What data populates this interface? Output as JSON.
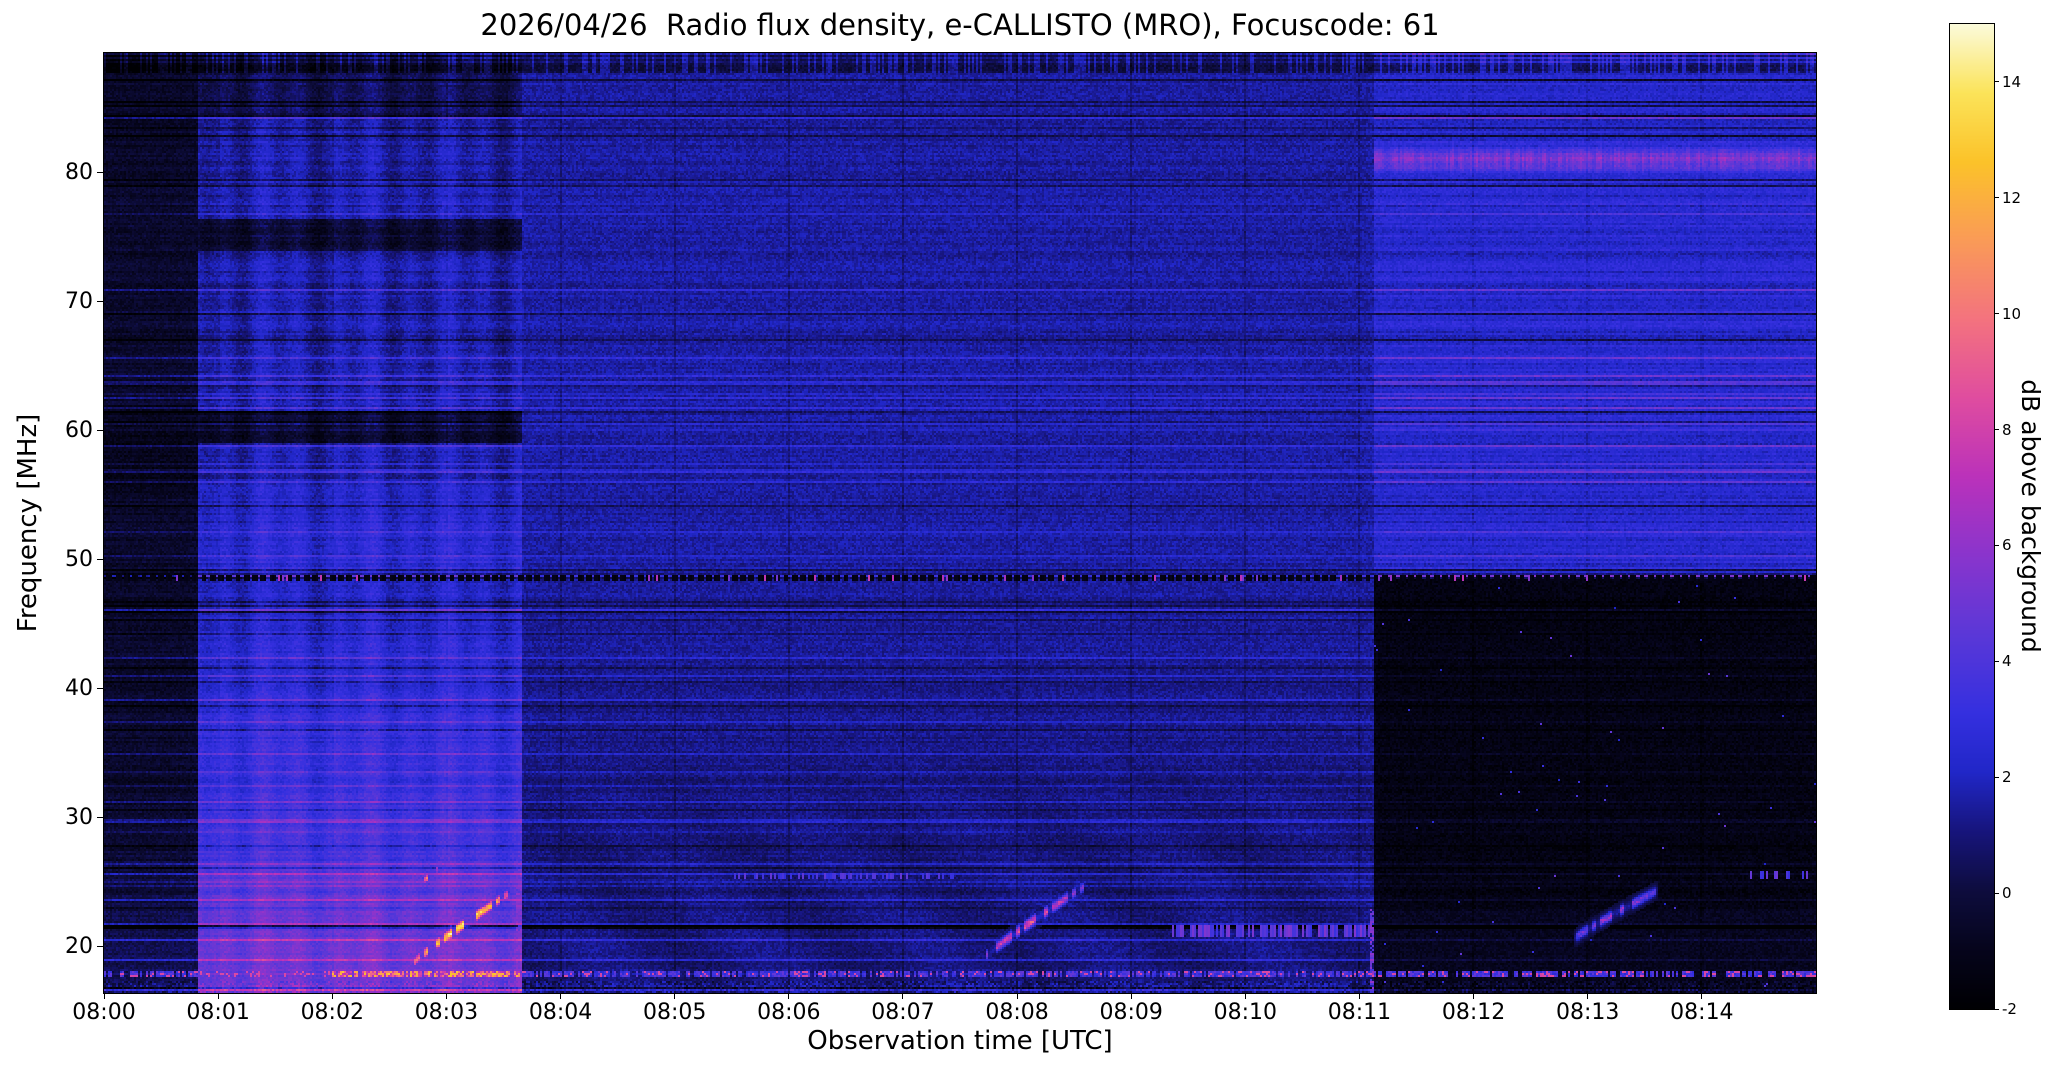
{
  "chart_data": {
    "type": "heatmap",
    "title": "2026/04/26  Radio flux density, e-CALLISTO (MRO), Focuscode: 61",
    "xlabel": "Observation time [UTC]",
    "ylabel": "Frequency [MHz]",
    "x_tick_labels": [
      "08:00",
      "08:01",
      "08:02",
      "08:03",
      "08:04",
      "08:05",
      "08:06",
      "08:07",
      "08:08",
      "08:09",
      "08:10",
      "08:11",
      "08:12",
      "08:13",
      "08:14"
    ],
    "x_range_minutes": [
      0,
      15
    ],
    "y_ticks": [
      20,
      30,
      40,
      50,
      60,
      70,
      80
    ],
    "y_range_mhz": [
      16.4,
      89.3
    ],
    "grid": false,
    "colorbar": {
      "label": "dB above background",
      "ticks": [
        -2,
        0,
        2,
        4,
        6,
        8,
        10,
        12,
        14
      ],
      "vmin": -2,
      "vmax": 15,
      "colormap_stops": [
        {
          "p": 0.0,
          "color": "#000003"
        },
        {
          "p": 0.06,
          "color": "#06051c"
        },
        {
          "p": 0.12,
          "color": "#0e0d3e"
        },
        {
          "p": 0.18,
          "color": "#17157c"
        },
        {
          "p": 0.24,
          "color": "#2127c8"
        },
        {
          "p": 0.3,
          "color": "#3530e0"
        },
        {
          "p": 0.38,
          "color": "#5b38d8"
        },
        {
          "p": 0.46,
          "color": "#8a35cd"
        },
        {
          "p": 0.54,
          "color": "#bb32bb"
        },
        {
          "p": 0.62,
          "color": "#e04da0"
        },
        {
          "p": 0.7,
          "color": "#f4737f"
        },
        {
          "p": 0.78,
          "color": "#fa9b58"
        },
        {
          "p": 0.86,
          "color": "#fcc32a"
        },
        {
          "p": 0.93,
          "color": "#fbe45a"
        },
        {
          "p": 1.0,
          "color": "#fcfbdc"
        }
      ]
    },
    "background_regions": [
      {
        "name": "quiet-start",
        "t": [
          0.0,
          0.82
        ],
        "base_db_high_freq": -0.55,
        "base_db_low_freq": 0.6
      },
      {
        "name": "enhanced-band",
        "t": [
          0.82,
          3.66
        ],
        "base_db_high_freq": 1.7,
        "base_db_low_freq": 4.8
      },
      {
        "name": "mid-interval",
        "t": [
          3.66,
          11.13
        ],
        "base_db_high_freq": 1.55,
        "base_db_low_freq": 1.0
      },
      {
        "name": "late-split",
        "t": [
          11.13,
          15.0
        ],
        "base_db_high_freq": 2.3,
        "base_db_low_freq": -1.35,
        "split_mhz": 48.5
      }
    ],
    "bursts": [
      {
        "label": "type-III-burst-0803",
        "t": [
          2.72,
          3.58
        ],
        "f": [
          18.8,
          24.3
        ],
        "peak_db": 13.0,
        "width_mhz": 0.45
      },
      {
        "label": "bright-spot-0802",
        "t": [
          2.8,
          2.92
        ],
        "f": [
          25.1,
          26.0
        ],
        "peak_db": 10.0,
        "width_mhz": 0.4
      },
      {
        "label": "type-III-burst-0808",
        "t": [
          7.72,
          8.58
        ],
        "f": [
          19.2,
          24.6
        ],
        "peak_db": 8.0,
        "width_mhz": 0.4
      },
      {
        "label": "faint-burst-0813",
        "t": [
          12.88,
          13.62
        ],
        "f": [
          20.6,
          24.4
        ],
        "peak_db": 5.5,
        "width_mhz": 0.35
      }
    ],
    "spectral_lines": [
      {
        "f_mhz": 17.85,
        "kind": "bright-dotted-carrier",
        "db": 5,
        "t": [
          0,
          15
        ]
      },
      {
        "f_mhz": 21.55,
        "kind": "dark-absorption-line",
        "db": -2,
        "t": [
          0,
          15
        ]
      },
      {
        "f_mhz": 48.6,
        "kind": "dark-dashed-line",
        "db": -1.3,
        "t": [
          0,
          15
        ]
      },
      {
        "f_mhz": 21.15,
        "kind": "bright-dotted-band",
        "db": 4.5,
        "t": [
          9.35,
          11.1
        ]
      },
      {
        "f_mhz": 25.45,
        "kind": "dotted-segments",
        "db": 3.5,
        "t": [
          5.5,
          7.5
        ]
      },
      {
        "f_mhz": 81.0,
        "kind": "bright-magenta-band",
        "db": 5.5,
        "t": [
          11.13,
          15.0
        ]
      }
    ],
    "colors": {
      "page_background": "#ffffff",
      "text": "#000000",
      "axes_frame": "#000000"
    }
  }
}
